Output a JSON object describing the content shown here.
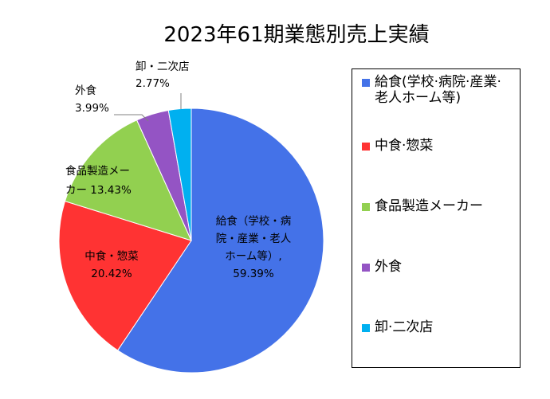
{
  "chart_data": {
    "type": "pie",
    "title": "2023年61期業態別売上実績",
    "slices": [
      {
        "name": "給食(学校·病院·産業·老人ホーム等)",
        "value": 59.39,
        "value_label": "59.39%",
        "label_lines": [
          "給食（学校・病",
          "院・産業・老人",
          "ホーム等）,"
        ],
        "color": "#4472e8"
      },
      {
        "name": "中食·惣菜",
        "value": 20.42,
        "value_label": "20.42%",
        "label_lines": [
          "中食・惣菜"
        ],
        "color": "#ff3333"
      },
      {
        "name": "食品製造メーカー",
        "value": 13.43,
        "value_label": "13.43%",
        "label_lines": [
          "食品製造メー",
          "カー"
        ],
        "color": "#92d050"
      },
      {
        "name": "外食",
        "value": 3.99,
        "value_label": "3.99%",
        "label_lines": [
          "外食"
        ],
        "color": "#9454c4"
      },
      {
        "name": "卸·二次店",
        "value": 2.77,
        "value_label": "2.77%",
        "label_lines": [
          "卸・二次店"
        ],
        "color": "#00b0f0"
      }
    ],
    "legend": {
      "position": "right",
      "entries": [
        "給食(学校·病院·産業·老人ホーム等)",
        "中食·惣菜",
        "食品製造メーカー",
        "外食",
        "卸·二次店"
      ]
    }
  }
}
